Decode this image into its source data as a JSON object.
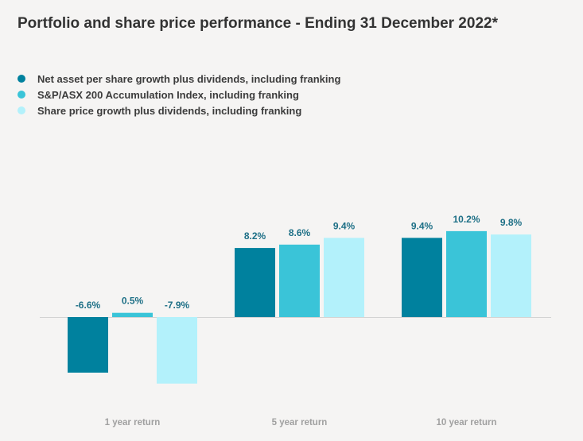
{
  "chart_data": {
    "type": "bar",
    "title": "Portfolio and share price performance - Ending 31 December 2022*",
    "categories": [
      "1 year return",
      "5 year return",
      "10 year return"
    ],
    "series": [
      {
        "name": "Net asset per share growth plus dividends, including franking",
        "color": "#00819e",
        "values": [
          -6.6,
          8.2,
          9.4
        ],
        "labels": [
          "-6.6%",
          "8.2%",
          "9.4%"
        ]
      },
      {
        "name": "S&P/ASX 200 Accumulation Index, including franking",
        "color": "#3ac4d8",
        "values": [
          0.5,
          8.6,
          10.2
        ],
        "labels": [
          "0.5%",
          "8.6%",
          "10.2%"
        ]
      },
      {
        "name": "Share price growth plus dividends, including franking",
        "color": "#b3f1fb",
        "values": [
          -7.9,
          9.4,
          9.8
        ],
        "labels": [
          "-7.9%",
          "9.4%",
          "9.8%"
        ]
      }
    ],
    "ylim": [
      -10,
      15
    ],
    "grid": false,
    "legend_position": "top-left",
    "axis_line_color": "#d3d3d3",
    "label_color": "#1d6f86",
    "category_label_color": "#a0a0a0"
  }
}
